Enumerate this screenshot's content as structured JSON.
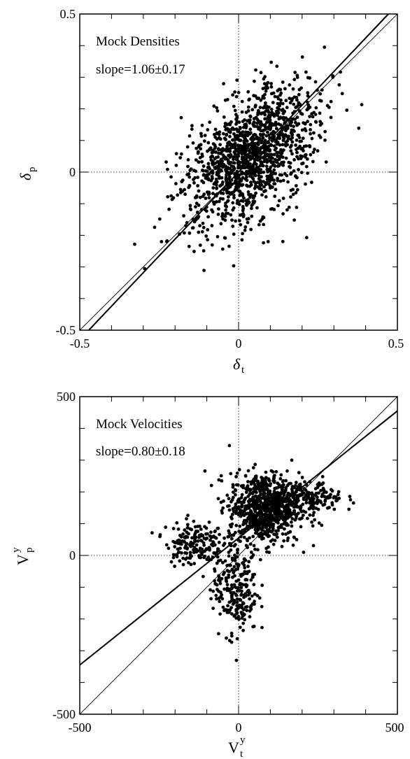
{
  "chart_data": [
    {
      "type": "scatter",
      "annotation_title": "Mock Densities",
      "annotation_slope": "slope=1.06±0.17",
      "xlabel": "δ",
      "xlabel_sub": "t",
      "ylabel": "δ",
      "ylabel_sub": "p",
      "xlim": [
        -0.5,
        0.5
      ],
      "ylim": [
        -0.5,
        0.5
      ],
      "x_ticks": [
        "-0.5",
        "0",
        "0.5"
      ],
      "y_ticks": [
        "-0.5",
        "0",
        "0.5"
      ],
      "reference_lines": [
        {
          "style": "thin",
          "slope": 1.0,
          "intercept": 0.0
        },
        {
          "style": "thick",
          "slope": 1.06,
          "intercept": 0.0
        }
      ],
      "cluster": {
        "center": [
          0.04,
          0.05
        ],
        "sd_major": 0.13,
        "sd_minor": 0.075,
        "angle_deg": 48,
        "n_points": 1400
      }
    },
    {
      "type": "scatter",
      "annotation_title": "Mock Velocities",
      "annotation_slope": "slope=0.80±0.18",
      "xlabel": "V",
      "xlabel_sup": "y",
      "xlabel_sub": "t",
      "ylabel": "V",
      "ylabel_sup": "y",
      "ylabel_sub": "p",
      "xlim": [
        -500,
        500
      ],
      "ylim": [
        -500,
        500
      ],
      "x_ticks": [
        "-500",
        "0",
        "500"
      ],
      "y_ticks": [
        "-500",
        "0",
        "500"
      ],
      "reference_lines": [
        {
          "style": "thin",
          "slope": 1.0,
          "intercept": 0
        },
        {
          "style": "thick",
          "slope": 0.8,
          "intercept": 55
        }
      ],
      "clusters": [
        {
          "center": [
            80,
            150
          ],
          "sd": [
            55,
            55
          ],
          "n_points": 800
        },
        {
          "center": [
            -10,
            -100
          ],
          "sd": [
            35,
            75
          ],
          "n_points": 250
        },
        {
          "center": [
            -140,
            40
          ],
          "sd": [
            45,
            35
          ],
          "n_points": 180
        },
        {
          "center": [
            220,
            180
          ],
          "sd": [
            55,
            25
          ],
          "n_points": 200
        }
      ]
    }
  ]
}
